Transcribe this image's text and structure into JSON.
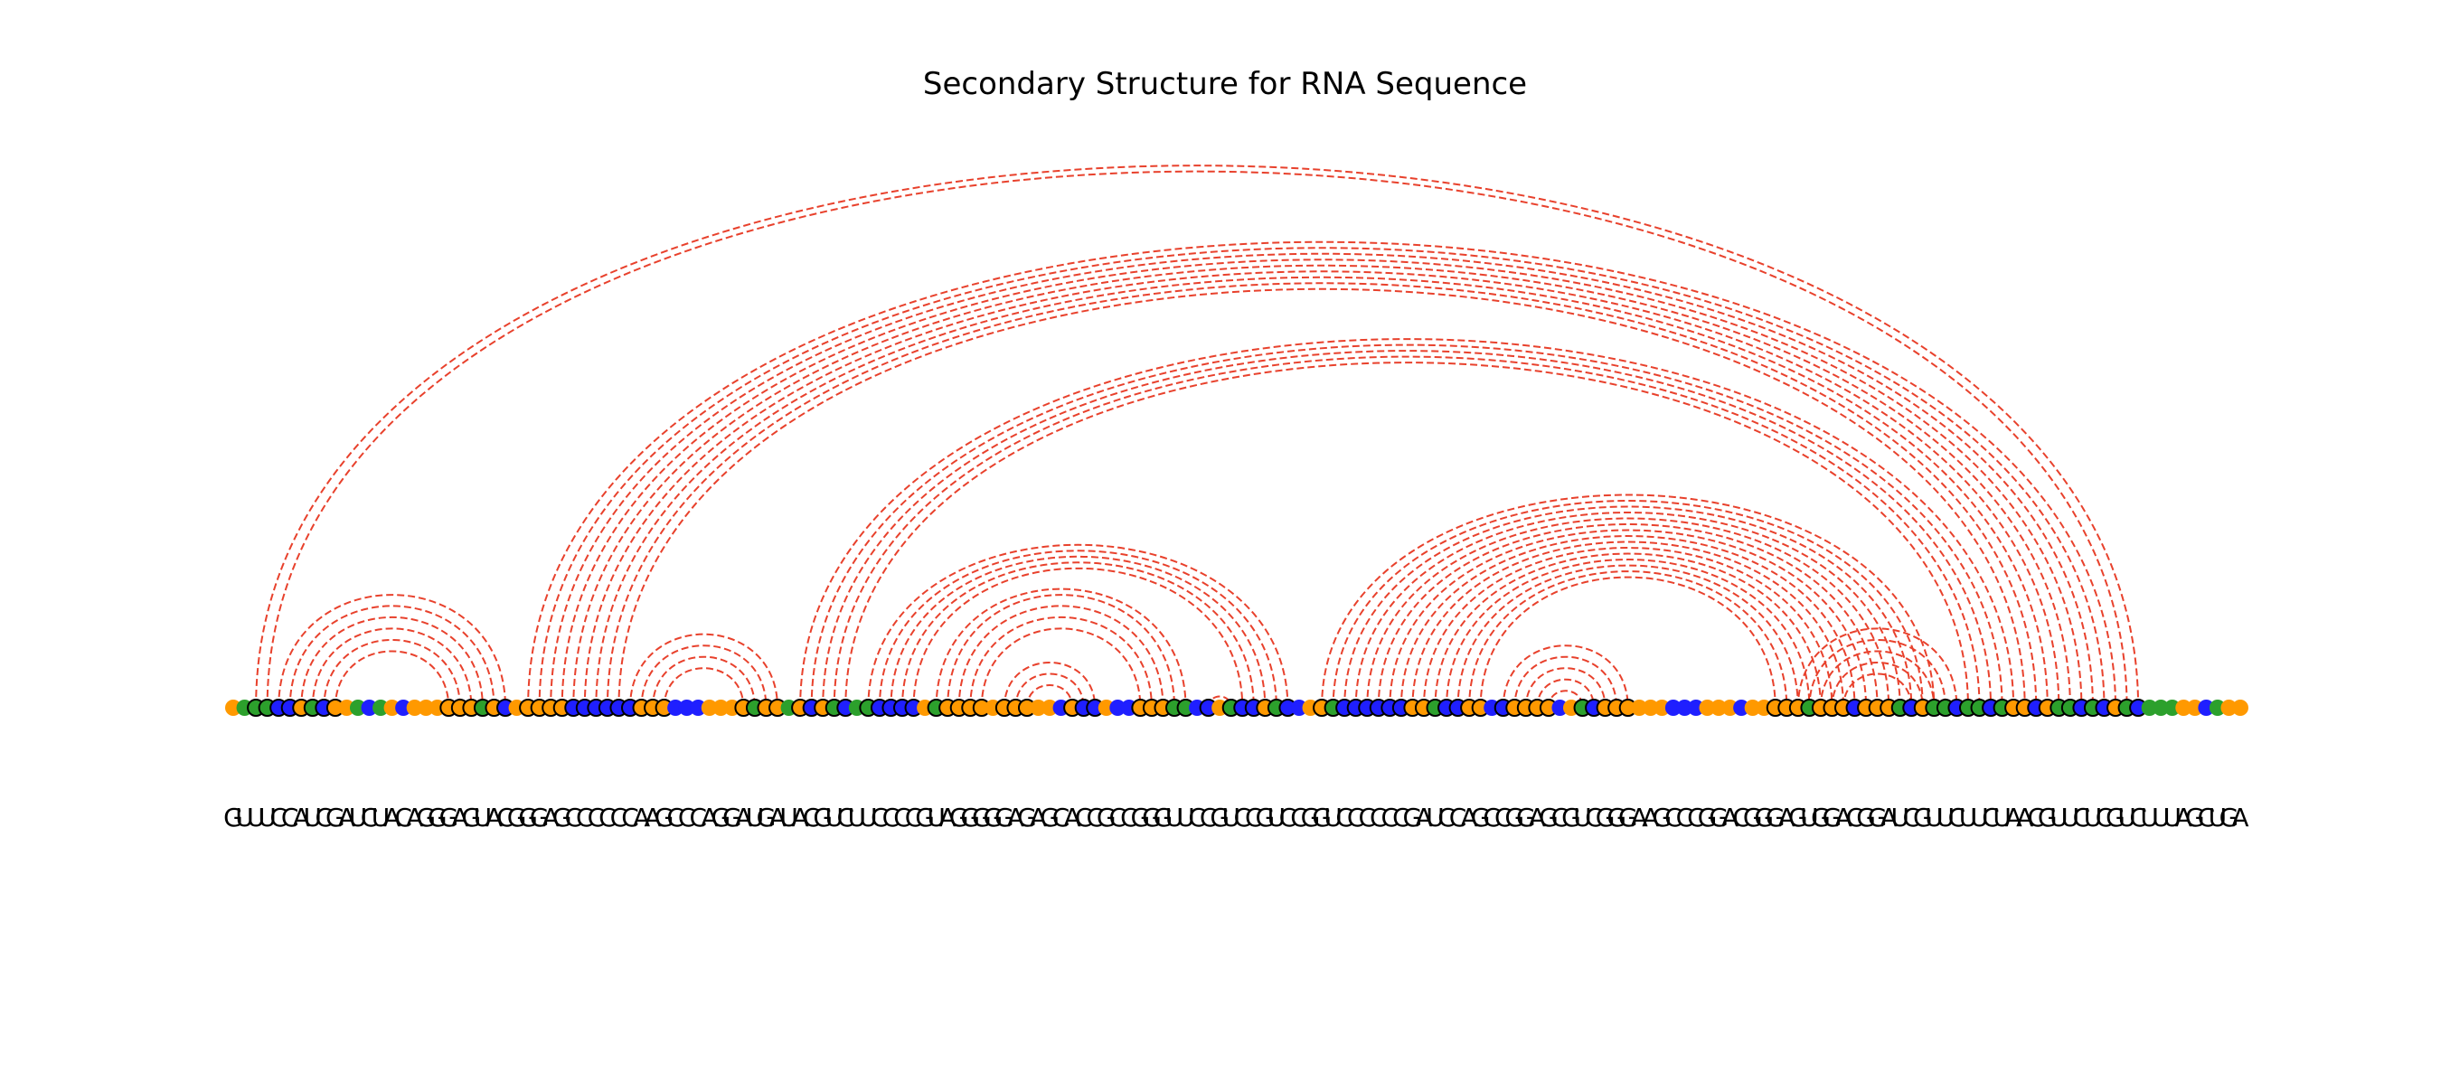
{
  "title": "Secondary Structure for RNA Sequence",
  "chart_data": {
    "type": "arc",
    "title": "Secondary Structure for RNA Sequence",
    "sequence": "GUUUCCAUCGAUCUACAGGGAGUACGGGAGCCCCCCAAGCCCAGGAUGAUACGUCUUCCCCGUAGGGGGAGAGCACCGCCGGGUUCCGUCCGUCCGGUCCCCCCGAUCCAGCCGGAGCGUCGGGAAGCCCGGACGGGAGUGGACGGAUCGUUCUUCUAACGUUCUCGUCUUUAGCUGA",
    "sequence_display": "GUUUCCAUCGAUCUACAGGGAGUACGGGAGCCCCCCAAGCCCAGGAUGAUACGUCUUCCCCGUAGGGGGAGAGCACCGCCGGGUUCCGUCCGUCCGGUCCCCCCGAUCCAGCCGGAGCGUCGGGAAGCCCGGACGGGAGUGGACGGAUCGUUCUUCUAACGUUCUCGUCUUUAGCUGA",
    "pairs": [
      [
        2,
        168
      ],
      [
        3,
        167
      ],
      [
        26,
        166
      ],
      [
        27,
        165
      ],
      [
        28,
        164
      ],
      [
        29,
        163
      ],
      [
        30,
        162
      ],
      [
        31,
        161
      ],
      [
        32,
        160
      ],
      [
        33,
        159
      ],
      [
        34,
        158
      ],
      [
        50,
        157
      ],
      [
        51,
        156
      ],
      [
        52,
        155
      ],
      [
        53,
        154
      ],
      [
        54,
        153
      ],
      [
        96,
        150
      ],
      [
        97,
        149
      ],
      [
        98,
        148
      ],
      [
        99,
        147
      ],
      [
        100,
        146
      ],
      [
        101,
        145
      ],
      [
        102,
        144
      ],
      [
        103,
        143
      ],
      [
        104,
        142
      ],
      [
        105,
        141
      ],
      [
        106,
        140
      ],
      [
        107,
        139
      ],
      [
        108,
        138
      ],
      [
        109,
        137
      ],
      [
        110,
        136
      ],
      [
        112,
        123
      ],
      [
        113,
        122
      ],
      [
        114,
        121
      ],
      [
        115,
        120
      ],
      [
        138,
        152
      ],
      [
        139,
        151
      ],
      [
        140,
        150
      ],
      [
        141,
        149
      ],
      [
        142,
        148
      ],
      [
        4,
        24
      ],
      [
        5,
        23
      ],
      [
        6,
        22
      ],
      [
        7,
        21
      ],
      [
        8,
        20
      ],
      [
        9,
        19
      ],
      [
        35,
        48
      ],
      [
        36,
        47
      ],
      [
        37,
        46
      ],
      [
        38,
        45
      ],
      [
        56,
        93
      ],
      [
        57,
        92
      ],
      [
        58,
        91
      ],
      [
        59,
        90
      ],
      [
        60,
        89
      ],
      [
        62,
        84
      ],
      [
        63,
        83
      ],
      [
        64,
        82
      ],
      [
        65,
        81
      ],
      [
        66,
        80
      ],
      [
        68,
        76
      ],
      [
        69,
        75
      ],
      [
        70,
        74
      ],
      [
        86,
        88
      ],
      [
        116,
        119
      ]
    ],
    "base_colors": {
      "A": "#ff9900",
      "U": "#2ca02c",
      "G": "#ff9900",
      "C": "#1f1fff"
    },
    "arc_color": "#e8412c",
    "node_outline": "#000000"
  }
}
